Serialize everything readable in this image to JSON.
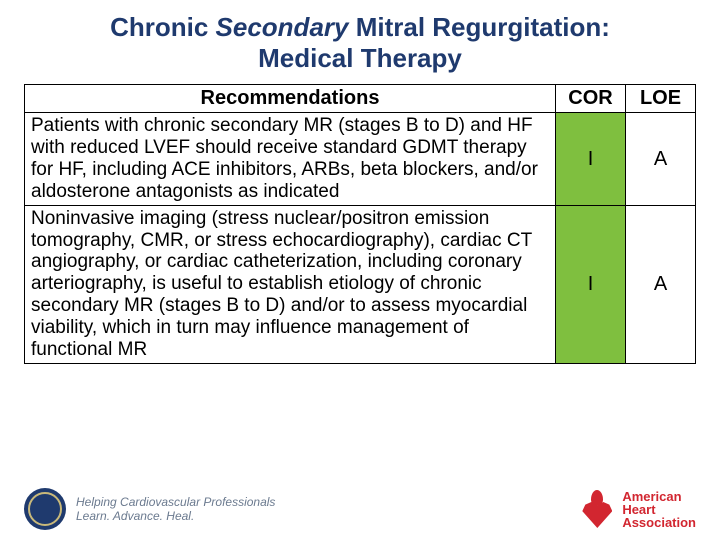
{
  "title_prefix": "Chronic ",
  "title_em": "Secondary",
  "title_mid": " Mitral Regurgitation:",
  "title_line2": "Medical Therapy",
  "headers": {
    "rec": "Recommendations",
    "cor": "COR",
    "loe": "LOE"
  },
  "rows": [
    {
      "rec": "Patients with chronic secondary MR (stages B to D) and HF with reduced LVEF should receive standard GDMT therapy for HF, including ACE inhibitors, ARBs, beta blockers, and/or aldosterone antagonists as indicated",
      "cor": "I",
      "loe": "A",
      "cor_bg": "#7fbf3f"
    },
    {
      "rec": "Noninvasive imaging (stress nuclear/positron emission tomography, CMR, or stress echocardiography), cardiac CT angiography, or cardiac catheterization, including coronary arteriography, is useful to establish etiology of chronic secondary MR (stages B to D) and/or to assess myocardial viability, which in turn may influence management of functional MR",
      "cor": "I",
      "loe": "A",
      "cor_bg": "#7fbf3f"
    }
  ],
  "footer": {
    "left_line1": "Helping Cardiovascular Professionals",
    "left_line2": "Learn. Advance. Heal.",
    "right_line1": "American",
    "right_line2": "Heart",
    "right_line3": "Association"
  }
}
